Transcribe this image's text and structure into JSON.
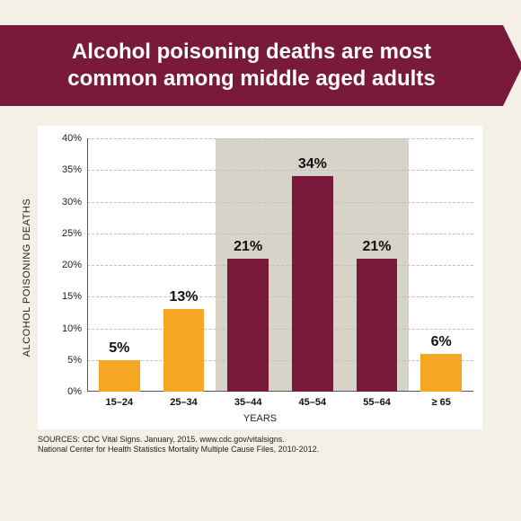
{
  "banner": {
    "text": "Alcohol poisoning deaths are most common among middle aged adults",
    "bg_color": "#7a1a3a",
    "text_color": "#ffffff",
    "fontsize": 24
  },
  "chart": {
    "type": "bar",
    "ylabel": "ALCOHOL POISONING DEATHS",
    "xlabel": "YEARS",
    "label_fontsize": 11,
    "value_label_fontsize": 16,
    "background_color": "#ffffff",
    "grid_color": "#bdbdbd",
    "axis_color": "#555555",
    "highlight_band": {
      "start_index": 2,
      "end_index": 5,
      "color": "#d8d3c9"
    },
    "ylim": [
      0,
      40
    ],
    "ytick_step": 5,
    "yticks": [
      "0%",
      "5%",
      "10%",
      "15%",
      "20%",
      "25%",
      "30%",
      "35%",
      "40%"
    ],
    "categories": [
      "15–24",
      "25–34",
      "35–44",
      "45–54",
      "55–64",
      "≥ 65"
    ],
    "values": [
      5,
      13,
      21,
      34,
      21,
      6
    ],
    "value_labels": [
      "5%",
      "13%",
      "21%",
      "34%",
      "21%",
      "6%"
    ],
    "bar_colors": [
      "#f5a623",
      "#f5a623",
      "#7a1a3a",
      "#7a1a3a",
      "#7a1a3a",
      "#f5a623"
    ],
    "bar_width": 0.64
  },
  "sources": {
    "line1": "SOURCES: CDC Vital Signs. January, 2015. www.cdc.gov/vitalsigns.",
    "line2": "National Center for Health Statistics Mortality Multiple Cause Files, 2010-2012."
  }
}
